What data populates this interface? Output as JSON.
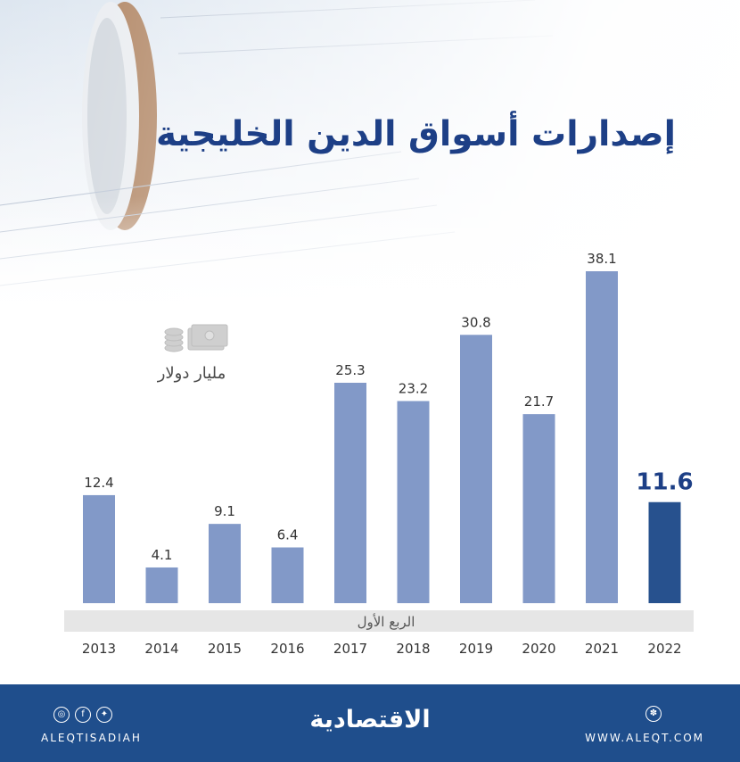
{
  "title": "إصدارات أسواق الدين الخليجية",
  "unit_icon": "money-stack-icon",
  "chart_data": {
    "type": "bar",
    "title": "إصدارات أسواق الدين الخليجية",
    "ylabel": "مليار دولار",
    "categories": [
      "2013",
      "2014",
      "2015",
      "2016",
      "2017",
      "2018",
      "2019",
      "2020",
      "2021",
      "2022"
    ],
    "values": [
      12.4,
      4.1,
      9.1,
      6.4,
      25.3,
      23.2,
      30.8,
      21.7,
      38.1,
      11.6
    ],
    "highlight_index": 9,
    "annotation": "الربع الأول",
    "colors": {
      "bar": "#8299c8",
      "highlight": "#27518e",
      "highlight_label": "#1d3f86"
    },
    "grid": false
  },
  "footer": {
    "handle": "ALEQTISADIAH",
    "brand": "الاقتصادية",
    "site": "WWW.ALEQT.COM",
    "social_icons": [
      "instagram-icon",
      "facebook-icon",
      "twitter-icon"
    ],
    "site_icon": "globe-icon",
    "color": "#1f4e8c"
  }
}
